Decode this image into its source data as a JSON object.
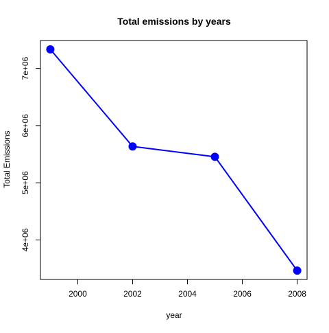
{
  "chart_data": {
    "type": "line",
    "title": "Total emissions by years",
    "xlabel": "year",
    "ylabel": "Total Emissions",
    "x": [
      1999,
      2002,
      2005,
      2008
    ],
    "series": [
      {
        "values": [
          7332967,
          5635780,
          5454703,
          3464206
        ],
        "color": "#0000ff"
      }
    ],
    "xlim": [
      1999,
      2008
    ],
    "ylim": [
      3464206,
      7332967
    ],
    "x_ticks": [
      2000,
      2002,
      2004,
      2006,
      2008
    ],
    "x_tick_labels": [
      "2000",
      "2002",
      "2004",
      "2006",
      "2008"
    ],
    "y_ticks": [
      4000000,
      5000000,
      6000000,
      7000000
    ],
    "y_tick_labels": [
      "4e+06",
      "5e+06",
      "6e+06",
      "7e+06"
    ],
    "grid": false,
    "legend": "none",
    "marker": "filled-circle"
  }
}
